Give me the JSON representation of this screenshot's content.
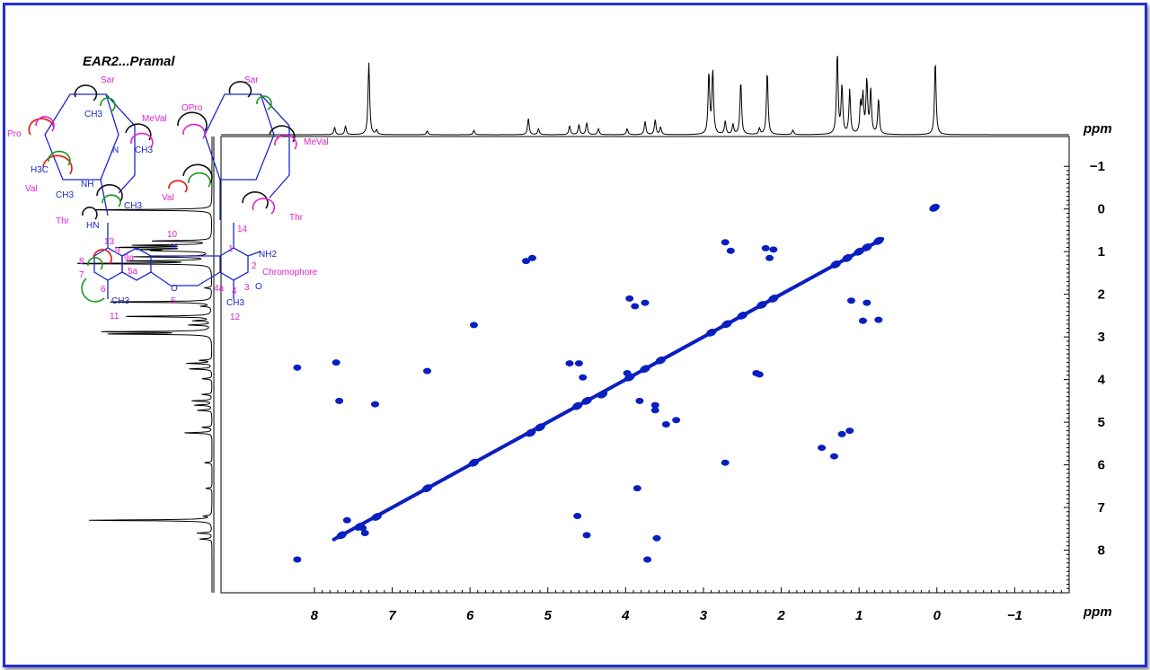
{
  "chart_data": {
    "type": "scatter",
    "subtype": "2D NMR COSY spectrum",
    "title": "EAR2...Pramal",
    "xlabel": "ppm",
    "ylabel": "ppm",
    "xlim": [
      9.2,
      -1.7
    ],
    "ylim": [
      -1.7,
      9.0
    ],
    "x_ticks": [
      "8",
      "7",
      "6",
      "5",
      "4",
      "3",
      "2",
      "1",
      "0",
      "−1"
    ],
    "x_tick_values": [
      8,
      7,
      6,
      5,
      4,
      3,
      2,
      1,
      0,
      -1
    ],
    "y_ticks": [
      "−1",
      "0",
      "1",
      "2",
      "3",
      "4",
      "5",
      "6",
      "7",
      "8"
    ],
    "y_tick_values": [
      -1,
      0,
      1,
      2,
      3,
      4,
      5,
      6,
      7,
      8
    ],
    "grid": false,
    "color": "#0a1fbf",
    "diagonal": [
      {
        "x": 0.03,
        "y": -0.03
      },
      {
        "x": 7.65,
        "y": 7.65
      },
      {
        "x": 7.42,
        "y": 7.45
      },
      {
        "x": 7.2,
        "y": 7.22
      },
      {
        "x": 6.55,
        "y": 6.55
      },
      {
        "x": 5.95,
        "y": 5.95
      },
      {
        "x": 5.22,
        "y": 5.25
      },
      {
        "x": 5.1,
        "y": 5.12
      },
      {
        "x": 4.62,
        "y": 4.62
      },
      {
        "x": 4.5,
        "y": 4.5
      },
      {
        "x": 4.3,
        "y": 4.35
      },
      {
        "x": 3.95,
        "y": 3.95
      },
      {
        "x": 3.75,
        "y": 3.75
      },
      {
        "x": 3.55,
        "y": 3.55
      },
      {
        "x": 2.9,
        "y": 2.9
      },
      {
        "x": 2.7,
        "y": 2.7
      },
      {
        "x": 2.5,
        "y": 2.5
      },
      {
        "x": 2.25,
        "y": 2.25
      },
      {
        "x": 2.1,
        "y": 2.1
      },
      {
        "x": 1.3,
        "y": 1.3
      },
      {
        "x": 1.15,
        "y": 1.15
      },
      {
        "x": 1.0,
        "y": 1.0
      },
      {
        "x": 0.9,
        "y": 0.9
      },
      {
        "x": 0.75,
        "y": 0.75
      }
    ],
    "cross_peaks": [
      {
        "x": 8.22,
        "y": 3.72
      },
      {
        "x": 8.22,
        "y": 8.22
      },
      {
        "x": 7.72,
        "y": 3.6
      },
      {
        "x": 7.68,
        "y": 4.5
      },
      {
        "x": 7.58,
        "y": 7.3
      },
      {
        "x": 7.38,
        "y": 7.48
      },
      {
        "x": 7.35,
        "y": 7.6
      },
      {
        "x": 7.22,
        "y": 4.58
      },
      {
        "x": 6.55,
        "y": 3.8
      },
      {
        "x": 5.95,
        "y": 2.72
      },
      {
        "x": 5.2,
        "y": 1.15
      },
      {
        "x": 5.28,
        "y": 1.22
      },
      {
        "x": 4.72,
        "y": 3.62
      },
      {
        "x": 4.6,
        "y": 3.62
      },
      {
        "x": 4.62,
        "y": 7.2
      },
      {
        "x": 4.55,
        "y": 3.95
      },
      {
        "x": 4.5,
        "y": 7.65
      },
      {
        "x": 3.95,
        "y": 2.1
      },
      {
        "x": 3.88,
        "y": 2.28
      },
      {
        "x": 3.75,
        "y": 2.2
      },
      {
        "x": 3.82,
        "y": 4.5
      },
      {
        "x": 3.85,
        "y": 6.55
      },
      {
        "x": 3.72,
        "y": 8.22
      },
      {
        "x": 3.62,
        "y": 4.6
      },
      {
        "x": 3.62,
        "y": 4.72
      },
      {
        "x": 3.6,
        "y": 7.72
      },
      {
        "x": 2.72,
        "y": 0.78
      },
      {
        "x": 2.65,
        "y": 0.98
      },
      {
        "x": 2.72,
        "y": 5.95
      },
      {
        "x": 2.32,
        "y": 3.85
      },
      {
        "x": 2.28,
        "y": 3.88
      },
      {
        "x": 2.2,
        "y": 0.92
      },
      {
        "x": 2.1,
        "y": 0.95
      },
      {
        "x": 2.15,
        "y": 1.15
      },
      {
        "x": 1.1,
        "y": 2.15
      },
      {
        "x": 0.9,
        "y": 2.2
      },
      {
        "x": 0.75,
        "y": 2.6
      },
      {
        "x": 0.95,
        "y": 2.62
      },
      {
        "x": 1.12,
        "y": 5.2
      },
      {
        "x": 1.22,
        "y": 5.28
      },
      {
        "x": 1.48,
        "y": 5.6
      },
      {
        "x": 1.32,
        "y": 5.8
      },
      {
        "x": 3.98,
        "y": 3.85
      },
      {
        "x": 3.35,
        "y": 4.95
      },
      {
        "x": 3.48,
        "y": 5.05
      }
    ],
    "h1_projection_peaks": [
      {
        "ppm": 7.74,
        "intensity": 0.1
      },
      {
        "ppm": 7.6,
        "intensity": 0.12
      },
      {
        "ppm": 7.3,
        "intensity": 0.98
      },
      {
        "ppm": 7.2,
        "intensity": 0.06
      },
      {
        "ppm": 6.55,
        "intensity": 0.05
      },
      {
        "ppm": 5.95,
        "intensity": 0.06
      },
      {
        "ppm": 5.25,
        "intensity": 0.22
      },
      {
        "ppm": 5.12,
        "intensity": 0.08
      },
      {
        "ppm": 4.72,
        "intensity": 0.12
      },
      {
        "ppm": 4.6,
        "intensity": 0.14
      },
      {
        "ppm": 4.5,
        "intensity": 0.16
      },
      {
        "ppm": 4.35,
        "intensity": 0.08
      },
      {
        "ppm": 3.98,
        "intensity": 0.08
      },
      {
        "ppm": 3.75,
        "intensity": 0.18
      },
      {
        "ppm": 3.62,
        "intensity": 0.2
      },
      {
        "ppm": 3.55,
        "intensity": 0.1
      },
      {
        "ppm": 2.93,
        "intensity": 0.82
      },
      {
        "ppm": 2.88,
        "intensity": 0.86
      },
      {
        "ppm": 2.72,
        "intensity": 0.18
      },
      {
        "ppm": 2.62,
        "intensity": 0.14
      },
      {
        "ppm": 2.52,
        "intensity": 0.72
      },
      {
        "ppm": 2.28,
        "intensity": 0.08
      },
      {
        "ppm": 2.18,
        "intensity": 0.86
      },
      {
        "ppm": 1.85,
        "intensity": 0.06
      },
      {
        "ppm": 1.28,
        "intensity": 1.1
      },
      {
        "ppm": 1.22,
        "intensity": 0.65
      },
      {
        "ppm": 1.12,
        "intensity": 0.6
      },
      {
        "ppm": 0.98,
        "intensity": 0.4
      },
      {
        "ppm": 0.95,
        "intensity": 0.5
      },
      {
        "ppm": 0.9,
        "intensity": 0.72
      },
      {
        "ppm": 0.85,
        "intensity": 0.6
      },
      {
        "ppm": 0.75,
        "intensity": 0.48
      },
      {
        "ppm": 0.02,
        "intensity": 1.0
      }
    ],
    "structure_labels": {
      "residues": [
        "Sar",
        "Pro",
        "MeVal",
        "Val",
        "Thr",
        "OPro",
        "Sar",
        "MeVal",
        "Val",
        "Thr"
      ],
      "groups": [
        "CH3",
        "CH3",
        "H3C",
        "CH3",
        "CH3",
        "NH",
        "HN",
        "CH3",
        "NH2",
        "CH3",
        "O",
        "O",
        "N",
        "N"
      ],
      "numbering": [
        "13",
        "9",
        "9a",
        "10",
        "8",
        "5a",
        "7",
        "6",
        "5",
        "11",
        "1",
        "2",
        "3",
        "4",
        "4a",
        "12",
        "14"
      ],
      "chromophore": "Chromophore"
    }
  }
}
